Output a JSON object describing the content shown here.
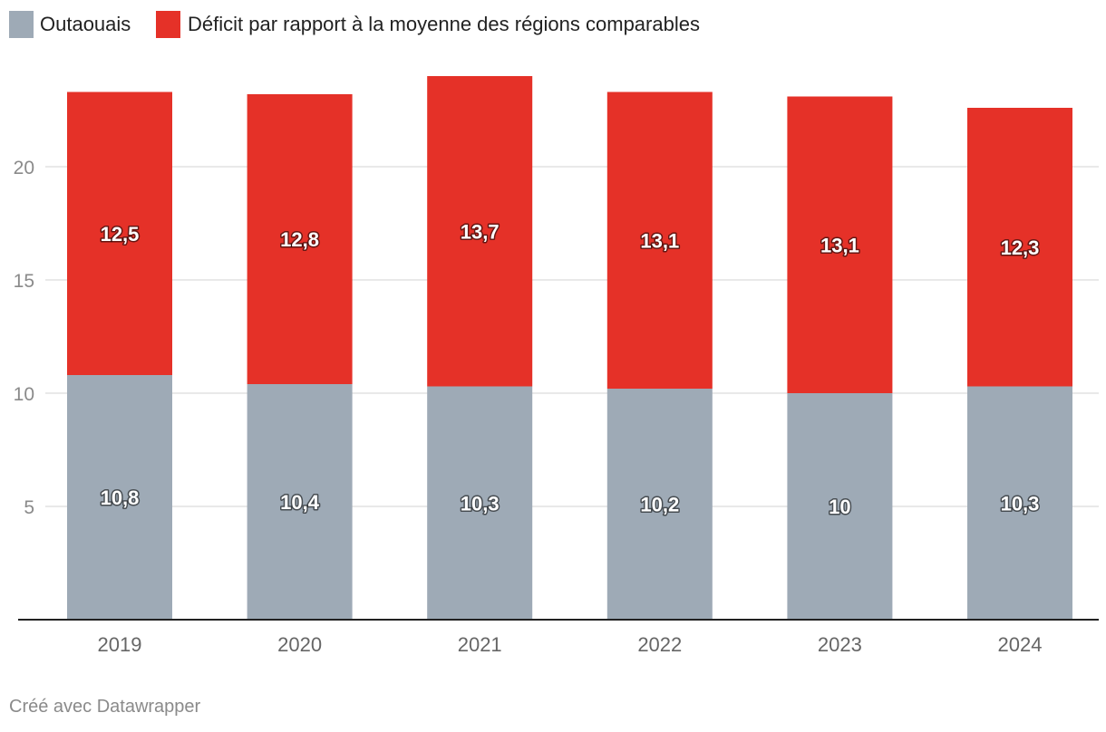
{
  "chart_data": {
    "type": "bar",
    "stacked": true,
    "categories": [
      "2019",
      "2020",
      "2021",
      "2022",
      "2023",
      "2024"
    ],
    "series": [
      {
        "name": "Outaouais",
        "color": "#9eaab6",
        "values": [
          10.8,
          10.4,
          10.3,
          10.2,
          10,
          10.3
        ],
        "labels": [
          "10,8",
          "10,4",
          "10,3",
          "10,2",
          "10",
          "10,3"
        ]
      },
      {
        "name": "Déficit par rapport à la moyenne des régions comparables",
        "color": "#e53128",
        "values": [
          12.5,
          12.8,
          13.7,
          13.1,
          13.1,
          12.3
        ],
        "labels": [
          "12,5",
          "12,8",
          "13,7",
          "13,1",
          "13,1",
          "12,3"
        ]
      }
    ],
    "y_ticks": [
      "5",
      "10",
      "15",
      "20"
    ],
    "y_tick_values": [
      5,
      10,
      15,
      20
    ],
    "ylim": [
      0,
      25
    ],
    "grid": true,
    "legend_position": "top-left",
    "title": "",
    "xlabel": "",
    "ylabel": ""
  },
  "footer": {
    "credit": "Créé avec Datawrapper"
  }
}
